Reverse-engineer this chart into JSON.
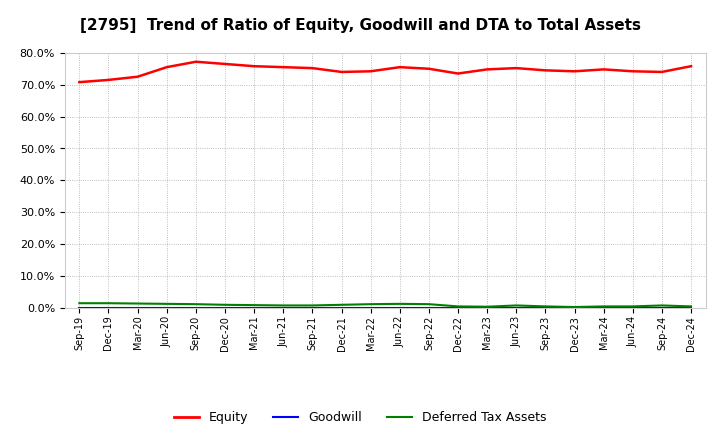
{
  "title": "[2795]  Trend of Ratio of Equity, Goodwill and DTA to Total Assets",
  "x_labels": [
    "Sep-19",
    "Dec-19",
    "Mar-20",
    "Jun-20",
    "Sep-20",
    "Dec-20",
    "Mar-21",
    "Jun-21",
    "Sep-21",
    "Dec-21",
    "Mar-22",
    "Jun-22",
    "Sep-22",
    "Dec-22",
    "Mar-23",
    "Jun-23",
    "Sep-23",
    "Dec-23",
    "Mar-24",
    "Jun-24",
    "Sep-24",
    "Dec-24"
  ],
  "equity": [
    70.8,
    71.5,
    72.5,
    75.5,
    77.2,
    76.5,
    75.8,
    75.5,
    75.2,
    74.0,
    74.2,
    75.5,
    75.0,
    73.5,
    74.8,
    75.2,
    74.5,
    74.2,
    74.8,
    74.2,
    74.0,
    75.8
  ],
  "goodwill": [
    0.0,
    0.0,
    0.0,
    0.0,
    0.0,
    0.0,
    0.0,
    0.0,
    0.0,
    0.0,
    0.0,
    0.0,
    0.0,
    0.0,
    0.0,
    0.0,
    0.0,
    0.0,
    0.0,
    0.0,
    0.0,
    0.0
  ],
  "dta": [
    1.5,
    1.5,
    1.4,
    1.3,
    1.2,
    1.0,
    0.9,
    0.8,
    0.8,
    1.0,
    1.2,
    1.3,
    1.2,
    0.5,
    0.4,
    0.8,
    0.5,
    0.3,
    0.5,
    0.5,
    0.8,
    0.5
  ],
  "equity_color": "#FF0000",
  "goodwill_color": "#0000FF",
  "dta_color": "#008000",
  "ylim": [
    0.0,
    80.0
  ],
  "yticks": [
    0.0,
    10.0,
    20.0,
    30.0,
    40.0,
    50.0,
    60.0,
    70.0,
    80.0
  ],
  "background_color": "#FFFFFF",
  "grid_color": "#AAAAAA",
  "title_fontsize": 11,
  "legend_labels": [
    "Equity",
    "Goodwill",
    "Deferred Tax Assets"
  ]
}
